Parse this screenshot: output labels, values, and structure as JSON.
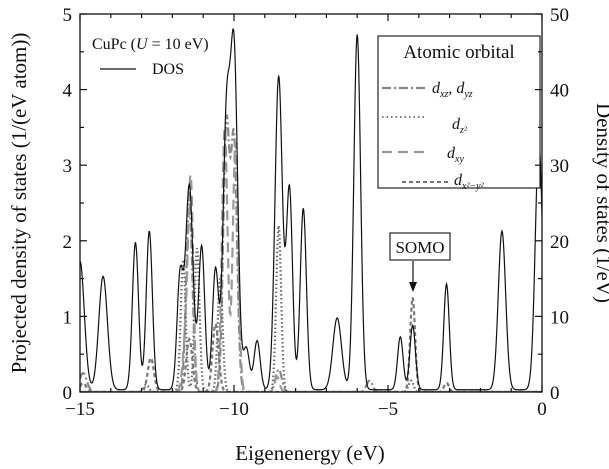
{
  "chart_data": {
    "type": "line",
    "title_annotation": "CuPc (U = 10 eV)",
    "xlabel": "Eigenenergy (eV)",
    "ylabel": "Projected density of states (1/(eV atom))",
    "ylabel_right": "Density of states (1/eV)",
    "xlim": [
      -15,
      0
    ],
    "ylim": [
      0,
      5
    ],
    "ylim_right": [
      0,
      50
    ],
    "x_ticks": [
      -15,
      -10,
      -5,
      0
    ],
    "y_ticks": [
      0,
      1,
      2,
      3,
      4,
      5
    ],
    "y_ticks_right": [
      0,
      10,
      20,
      30,
      40,
      50
    ],
    "grid": false,
    "legend_title": "Atomic orbital",
    "legend_position": "top-right",
    "annotation": "SOMO",
    "annotation_x": -4.2,
    "annotation_y": 1.3,
    "series": [
      {
        "name": "DOS",
        "axis": "right",
        "style": "solid",
        "color": "#111111",
        "peaks": [
          [
            -15.0,
            17,
            0.14
          ],
          [
            -14.25,
            15,
            0.14
          ],
          [
            -13.2,
            19.5,
            0.1
          ],
          [
            -12.75,
            21,
            0.1
          ],
          [
            -11.75,
            15,
            0.1
          ],
          [
            -11.45,
            27,
            0.12
          ],
          [
            -11.05,
            19,
            0.1
          ],
          [
            -10.6,
            16,
            0.1
          ],
          [
            -10.25,
            34,
            0.11
          ],
          [
            -10.0,
            44.5,
            0.12
          ],
          [
            -9.6,
            5.5,
            0.1
          ],
          [
            -9.25,
            6.5,
            0.1
          ],
          [
            -8.55,
            41.5,
            0.12
          ],
          [
            -8.2,
            26.5,
            0.1
          ],
          [
            -7.75,
            24,
            0.1
          ],
          [
            -6.65,
            9.5,
            0.14
          ],
          [
            -6.0,
            47,
            0.11
          ],
          [
            -4.6,
            7,
            0.09
          ],
          [
            -4.2,
            8.5,
            0.09
          ],
          [
            -3.1,
            14,
            0.09
          ],
          [
            -1.3,
            21,
            0.12
          ],
          [
            -0.1,
            32.5,
            0.12
          ]
        ]
      },
      {
        "name": "d_xz, d_yz",
        "axis": "left",
        "style": "dash-dot",
        "color": "#888888",
        "peaks": [
          [
            -14.9,
            0.25,
            0.12
          ],
          [
            -11.45,
            2.5,
            0.1
          ],
          [
            -10.25,
            3.5,
            0.1
          ],
          [
            -10.0,
            3.3,
            0.1
          ],
          [
            -8.55,
            0.3,
            0.1
          ],
          [
            -5.6,
            0.15,
            0.1
          ]
        ]
      },
      {
        "name": "d_z2",
        "axis": "left",
        "style": "dotted",
        "color": "#666666",
        "peaks": [
          [
            -12.85,
            0.1,
            0.08
          ],
          [
            -11.65,
            1.75,
            0.08
          ],
          [
            -11.2,
            1.9,
            0.08
          ],
          [
            -10.45,
            1.5,
            0.08
          ],
          [
            -8.55,
            2.2,
            0.08
          ],
          [
            -4.25,
            0.15,
            0.08
          ]
        ]
      },
      {
        "name": "d_xy",
        "axis": "left",
        "style": "dashed",
        "color": "#999999",
        "peaks": [
          [
            -11.55,
            0.8,
            0.1
          ],
          [
            -11.4,
            2.6,
            0.08
          ],
          [
            -10.3,
            3.5,
            0.09
          ],
          [
            -9.95,
            3.3,
            0.09
          ],
          [
            -8.6,
            0.2,
            0.08
          ]
        ]
      },
      {
        "name": "d_x2-y2",
        "axis": "left",
        "style": "short-dash",
        "color": "#777777",
        "peaks": [
          [
            -14.9,
            0.12,
            0.1
          ],
          [
            -12.7,
            0.45,
            0.1
          ],
          [
            -11.45,
            0.7,
            0.1
          ],
          [
            -10.6,
            0.9,
            0.1
          ],
          [
            -4.2,
            1.25,
            0.08
          ],
          [
            -3.1,
            0.12,
            0.08
          ]
        ]
      }
    ]
  },
  "legend": {
    "items": [
      "d_xz, d_yz",
      "d_z2",
      "d_xy",
      "d_x2-y2"
    ]
  }
}
